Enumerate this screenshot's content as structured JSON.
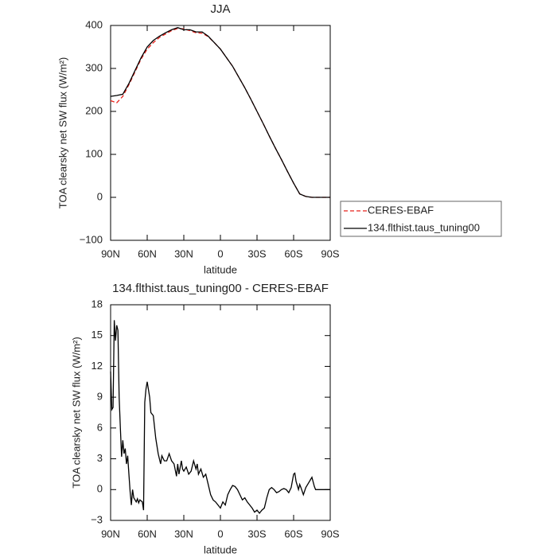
{
  "chart_data": [
    {
      "type": "line",
      "title": "JJA",
      "x_label": "latitude",
      "y_label": "TOA clearsky net SW flux (W/m²)",
      "x": [
        90,
        85,
        80,
        75,
        70,
        65,
        60,
        55,
        50,
        45,
        40,
        35,
        30,
        25,
        20,
        15,
        10,
        5,
        0,
        -5,
        -10,
        -15,
        -20,
        -25,
        -30,
        -35,
        -40,
        -45,
        -50,
        -55,
        -60,
        -65,
        -70,
        -75,
        -80,
        -85,
        -90
      ],
      "series": [
        {
          "name": "CERES-EBAF",
          "color": "#e8201a",
          "linestyle": "dashed",
          "values": [
            225,
            220,
            235,
            262,
            292,
            322,
            345,
            360,
            372,
            380,
            388,
            393,
            392,
            388,
            383,
            382,
            374,
            360,
            345,
            325,
            305,
            280,
            255,
            228,
            200,
            172,
            143,
            115,
            88,
            60,
            33,
            8,
            2,
            0,
            0,
            0,
            0
          ]
        },
        {
          "name": "134.flthist.taus_tuning00",
          "color": "#000000",
          "linestyle": "solid",
          "values": [
            235,
            237,
            240,
            265,
            295,
            325,
            350,
            365,
            375,
            383,
            390,
            395,
            390,
            390,
            385,
            385,
            375,
            360,
            345,
            325,
            305,
            280,
            255,
            228,
            200,
            172,
            143,
            115,
            88,
            60,
            33,
            8,
            2,
            0,
            0,
            0,
            0
          ]
        }
      ],
      "xlim": [
        90,
        -90
      ],
      "xticks": [
        {
          "value": 90,
          "label": "90N"
        },
        {
          "value": 60,
          "label": "60N"
        },
        {
          "value": 30,
          "label": "30N"
        },
        0,
        {
          "value": -30,
          "label": "30S"
        },
        {
          "value": -60,
          "label": "60S"
        },
        {
          "value": -90,
          "label": "90S"
        }
      ],
      "ylim": [
        -100,
        400
      ],
      "yticks": [
        {
          "value": -100,
          "label": "−100"
        },
        0,
        100,
        200,
        300,
        400
      ],
      "legend": "right",
      "grid": false
    },
    {
      "type": "line",
      "title": "134.flthist.taus_tuning00 - CERES-EBAF",
      "x_label": "latitude",
      "y_label": "TOA clearsky net SW flux (W/m²)",
      "x": [
        90,
        89,
        88,
        87,
        86,
        85,
        84,
        83,
        82,
        81,
        80,
        79,
        78,
        77,
        76,
        75,
        74,
        73,
        72,
        71,
        70,
        69,
        68,
        67,
        66,
        65,
        64,
        63,
        62,
        61,
        60,
        58,
        57,
        55,
        53,
        51,
        50,
        49,
        48,
        46,
        44,
        42,
        40,
        38,
        36,
        35,
        34,
        32,
        31,
        30,
        28,
        26,
        24,
        22,
        20,
        19,
        18,
        16,
        14,
        12,
        10,
        8,
        6,
        4,
        2,
        0,
        -2,
        -4,
        -6,
        -8,
        -10,
        -12,
        -14,
        -16,
        -18,
        -20,
        -22,
        -24,
        -26,
        -28,
        -30,
        -32,
        -34,
        -36,
        -38,
        -40,
        -42,
        -44,
        -46,
        -48,
        -50,
        -52,
        -54,
        -56,
        -58,
        -60,
        -61,
        -62,
        -64,
        -65,
        -66,
        -68,
        -70,
        -72,
        -74,
        -75,
        -77,
        -78,
        -80,
        -85,
        -90
      ],
      "values": [
        11.5,
        7.8,
        8,
        16.5,
        14.5,
        16,
        15.5,
        9,
        6,
        3.2,
        4.8,
        3.5,
        4,
        2.5,
        3.3,
        1.5,
        -0.2,
        -1.5,
        0,
        -0.8,
        -1,
        -1.2,
        -0.9,
        -1.3,
        -1,
        -1.1,
        -1.2,
        -2,
        8.5,
        9.8,
        10.5,
        9,
        7.5,
        7.2,
        5,
        3.5,
        3,
        2.5,
        3.3,
        2.8,
        2.8,
        3.5,
        2.8,
        2.5,
        1.3,
        2.5,
        1.5,
        2.8,
        2,
        1.8,
        2.2,
        1.5,
        1.8,
        2.8,
        2,
        2.5,
        1.5,
        2,
        1.2,
        1.5,
        0.5,
        -0.5,
        -1,
        -1.2,
        -1.5,
        -1.8,
        -1.2,
        -1.5,
        -0.5,
        0,
        0.4,
        0.3,
        0,
        -0.5,
        -1,
        -0.8,
        -1.2,
        -1.5,
        -1.8,
        -2.2,
        -2,
        -2.3,
        -2,
        -1.8,
        -0.8,
        0,
        0.2,
        0,
        -0.3,
        -0.2,
        0,
        0.1,
        0,
        -0.3,
        0.2,
        1.5,
        1.6,
        0.8,
        0,
        0.5,
        0.2,
        -0.5,
        0.2,
        0.6,
        1,
        1.2,
        0.3,
        0,
        0,
        0,
        0
      ],
      "color": "#000000",
      "xlim": [
        90,
        -90
      ],
      "xticks": [
        {
          "value": 90,
          "label": "90N"
        },
        {
          "value": 60,
          "label": "60N"
        },
        {
          "value": 30,
          "label": "30N"
        },
        0,
        {
          "value": -30,
          "label": "30S"
        },
        {
          "value": -60,
          "label": "60S"
        },
        {
          "value": -90,
          "label": "90S"
        }
      ],
      "ylim": [
        -3,
        18
      ],
      "yticks": [
        {
          "value": -3,
          "label": "−3"
        },
        0,
        3,
        6,
        9,
        12,
        15,
        18
      ],
      "grid": false
    }
  ]
}
